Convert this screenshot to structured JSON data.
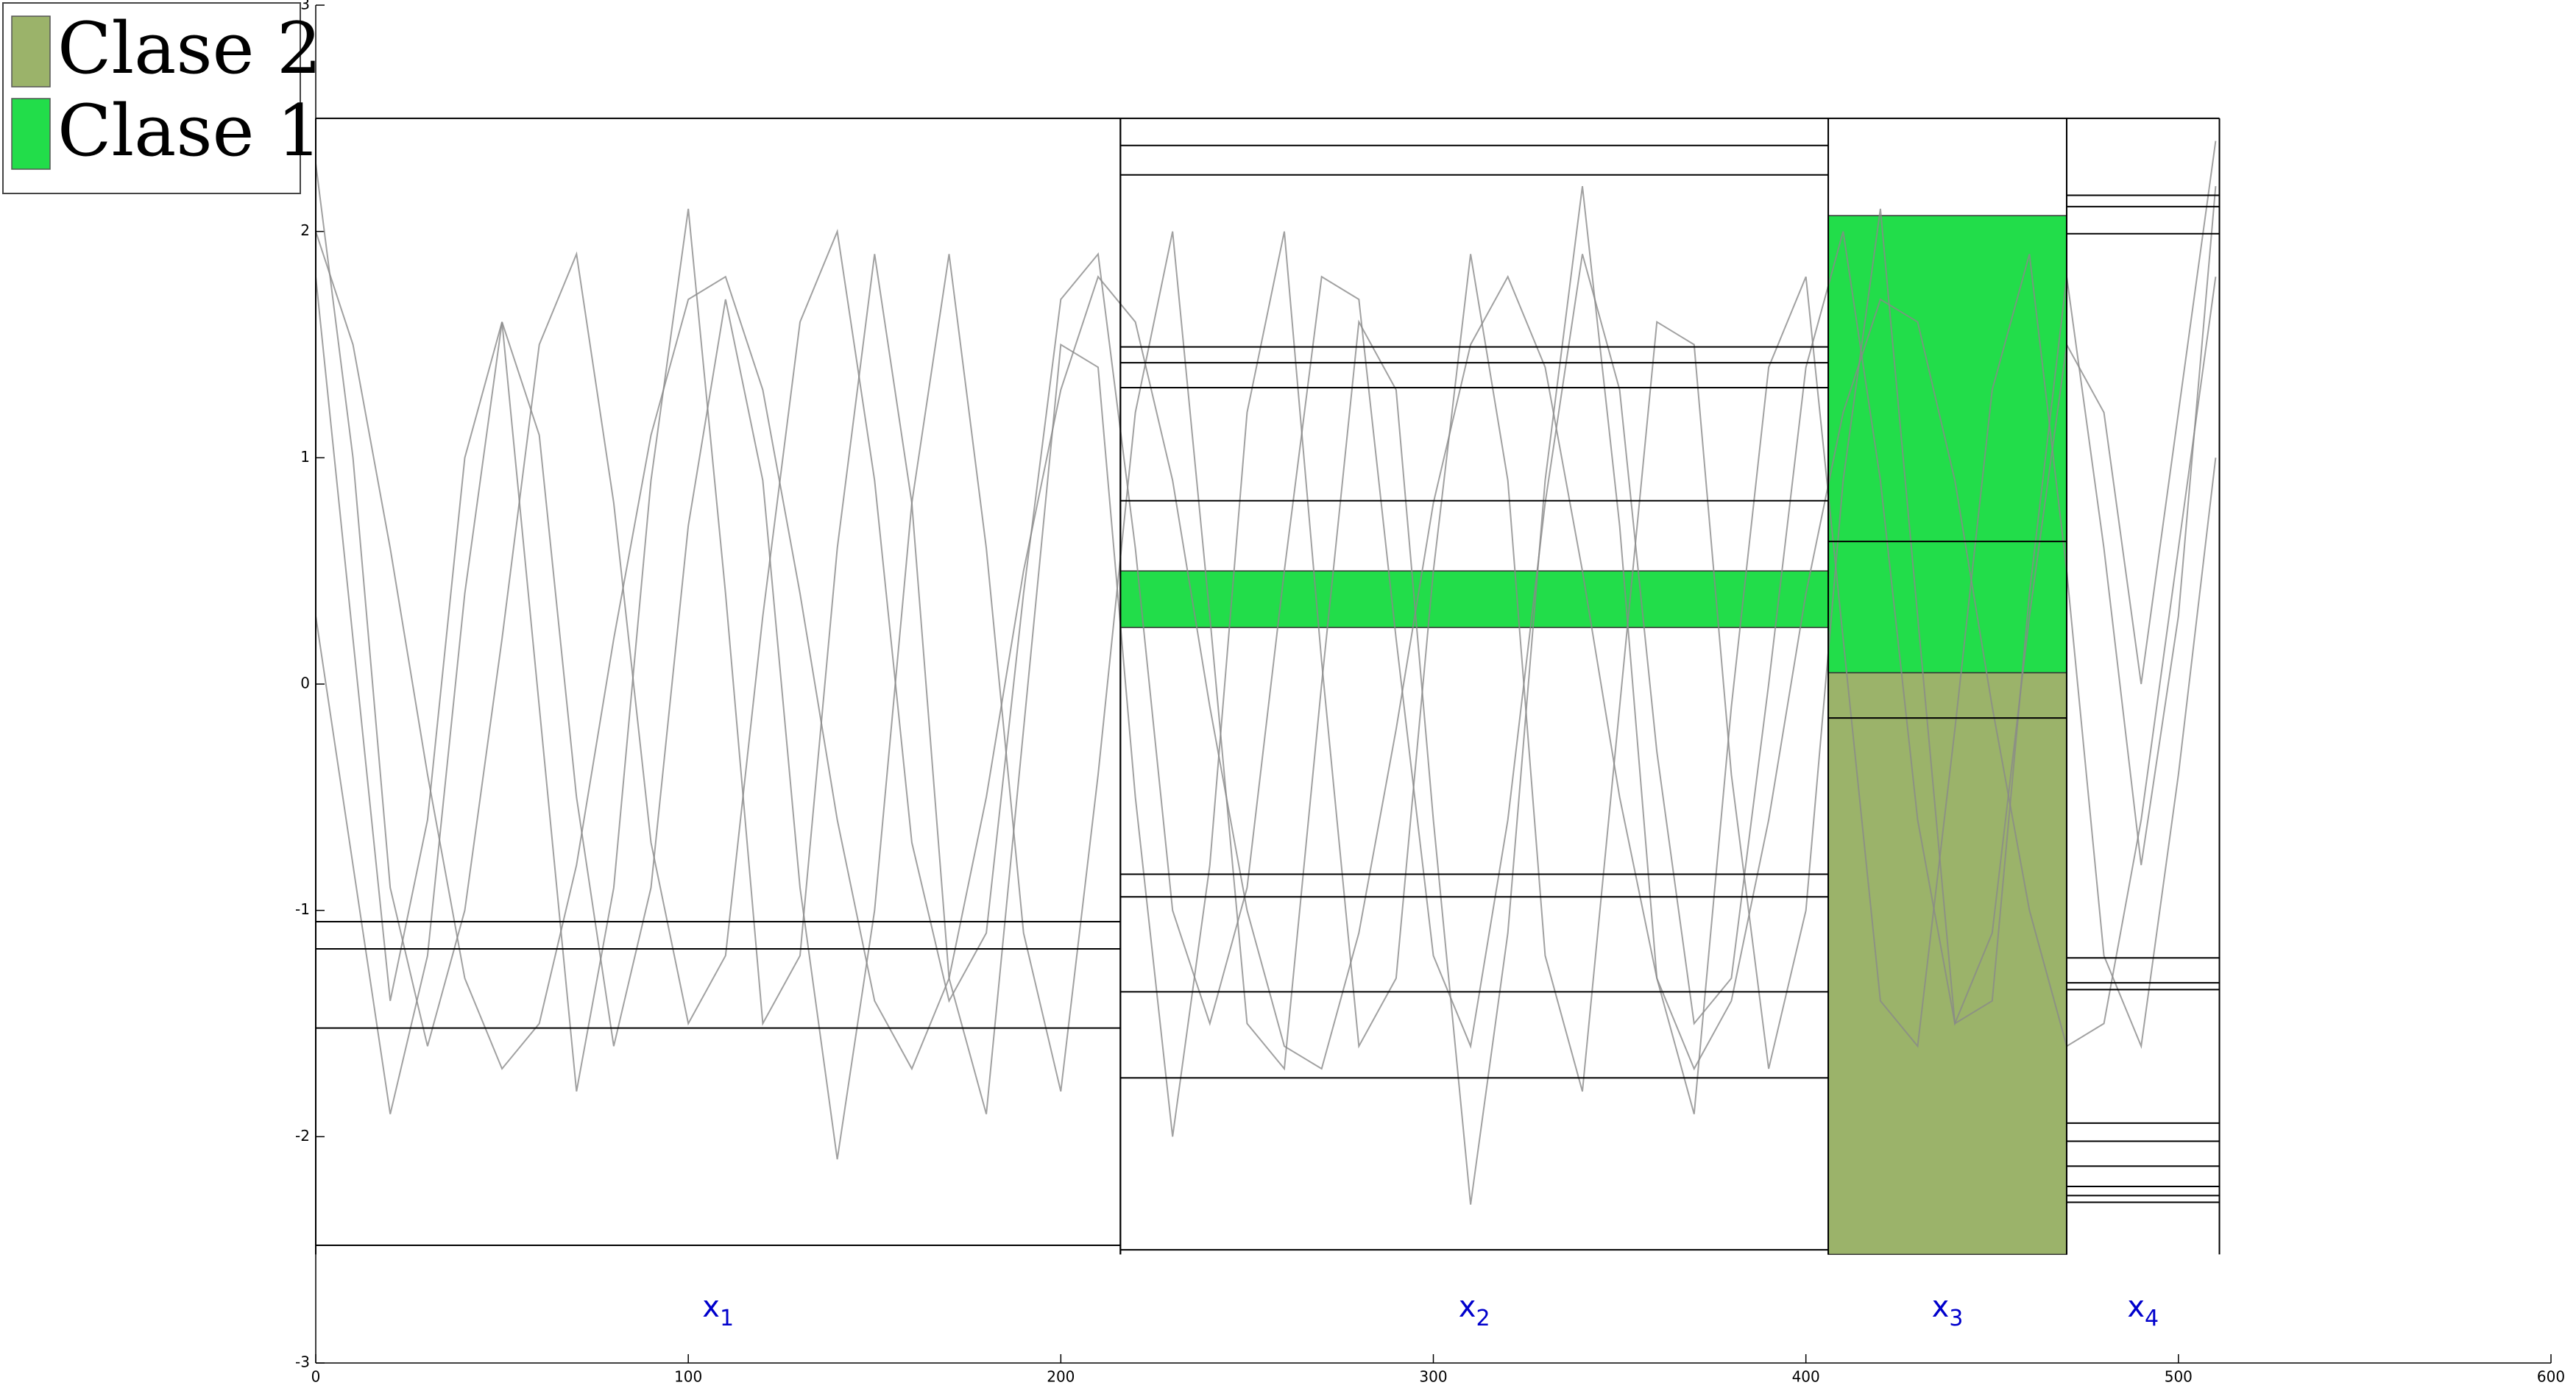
{
  "chart_data": {
    "type": "line",
    "xlim": [
      0,
      600
    ],
    "ylim": [
      -3,
      3
    ],
    "xticks": [
      0,
      100,
      200,
      300,
      400,
      500,
      600
    ],
    "yticks": [
      -3,
      -2,
      -1,
      0,
      1,
      2,
      3
    ],
    "frame": [
      -2.52,
      2.5
    ],
    "x": [
      0,
      10,
      20,
      30,
      40,
      50,
      60,
      70,
      80,
      90,
      100,
      110,
      120,
      130,
      140,
      150,
      160,
      170,
      180,
      190,
      200,
      210,
      220,
      230,
      240,
      250,
      260,
      270,
      280,
      290,
      300,
      310,
      320,
      330,
      340,
      350,
      360,
      370,
      380,
      390,
      400,
      410,
      420,
      430,
      440,
      450,
      460,
      470,
      480,
      490,
      500,
      510
    ],
    "series": [
      {
        "color": "#8a8a8a",
        "values": [
          2.0,
          1.5,
          0.6,
          -0.4,
          -1.3,
          -1.7,
          -1.5,
          -0.8,
          0.2,
          1.1,
          1.7,
          1.8,
          1.3,
          0.4,
          -0.6,
          -1.4,
          -1.7,
          -1.3,
          -0.5,
          0.5,
          1.3,
          1.8,
          1.6,
          0.9,
          -0.1,
          -1.0,
          -1.6,
          -1.7,
          -1.1,
          -0.2,
          0.8,
          1.5,
          1.8,
          1.4,
          0.5,
          -0.5,
          -1.3,
          -1.7,
          -1.4,
          -0.6,
          0.4,
          1.2,
          1.7,
          1.6,
          0.9,
          -0.1,
          -1.0,
          -1.6,
          -1.5,
          -0.6,
          0.6,
          1.8
        ]
      },
      {
        "color": "#8a8a8a",
        "values": [
          1.8,
          0.2,
          -1.4,
          -0.6,
          1.0,
          1.6,
          -0.1,
          -1.8,
          -0.9,
          0.9,
          2.1,
          0.4,
          -1.5,
          -1.2,
          0.6,
          1.9,
          0.8,
          -1.3,
          -1.9,
          -0.2,
          1.5,
          1.4,
          -0.5,
          -2.0,
          -0.8,
          1.2,
          2.0,
          0.1,
          -1.6,
          -1.3,
          0.5,
          1.9,
          0.9,
          -1.2,
          -1.8,
          -0.1,
          1.6,
          1.5,
          -0.4,
          -1.7,
          -1.0,
          0.9,
          2.1,
          0.3,
          -1.5,
          -1.4,
          0.4,
          1.8,
          0.6,
          -0.8,
          0.3,
          2.2
        ]
      },
      {
        "color": "#8a8a8a",
        "values": [
          0.3,
          -0.8,
          -1.9,
          -1.2,
          0.4,
          1.6,
          1.1,
          -0.5,
          -1.6,
          -0.9,
          0.7,
          1.7,
          0.9,
          -0.9,
          -2.1,
          -1.0,
          0.8,
          1.9,
          0.6,
          -1.1,
          -1.8,
          -0.4,
          1.2,
          2.0,
          0.3,
          -1.5,
          -1.7,
          0.0,
          1.6,
          1.3,
          -0.6,
          -2.3,
          -1.1,
          0.9,
          2.2,
          0.7,
          -1.3,
          -1.9,
          -0.1,
          1.4,
          1.8,
          0.2,
          -1.4,
          -1.6,
          -0.2,
          1.3,
          1.9,
          0.5,
          -1.2,
          -1.6,
          -0.4,
          1.0
        ]
      },
      {
        "color": "#8a8a8a",
        "values": [
          2.3,
          1.0,
          -0.9,
          -1.6,
          -1.0,
          0.2,
          1.5,
          1.9,
          0.8,
          -0.7,
          -1.5,
          -1.2,
          0.3,
          1.6,
          2.0,
          0.9,
          -0.7,
          -1.4,
          -1.1,
          0.4,
          1.7,
          1.9,
          0.6,
          -1.0,
          -1.5,
          -0.9,
          0.5,
          1.8,
          1.7,
          0.2,
          -1.2,
          -1.6,
          -0.6,
          0.8,
          1.9,
          1.3,
          -0.3,
          -1.5,
          -1.3,
          0.0,
          1.4,
          2.0,
          0.9,
          -0.6,
          -1.5,
          -1.1,
          0.3,
          1.5,
          1.2,
          0.0,
          1.2,
          2.4
        ]
      }
    ],
    "regions": [
      {
        "x": [
          0,
          216
        ],
        "label": "x",
        "subscript": "1",
        "levels": [
          -1.05,
          -1.17,
          -1.52,
          -2.48
        ]
      },
      {
        "x": [
          216,
          406
        ],
        "label": "x",
        "subscript": "2",
        "levels": [
          2.38,
          2.25,
          1.49,
          1.42,
          1.31,
          0.81,
          -0.84,
          -0.94,
          -1.36,
          -1.74,
          -2.5
        ]
      },
      {
        "x": [
          406,
          470
        ],
        "label": "x",
        "subscript": "3",
        "levels": [
          0.63,
          -0.15
        ]
      },
      {
        "x": [
          470,
          511
        ],
        "label": "x",
        "subscript": "4",
        "levels": [
          2.16,
          2.11,
          1.99,
          -1.21,
          -1.32,
          -1.35,
          -1.94,
          -2.02,
          -2.13,
          -2.22,
          -2.26,
          -2.29
        ]
      }
    ],
    "boxes": [
      {
        "x": [
          216,
          406
        ],
        "y": [
          0.25,
          0.5
        ],
        "color": "#22dd4a"
      },
      {
        "x": [
          406,
          470
        ],
        "y": [
          0.05,
          2.07
        ],
        "color": "#22dd4a"
      },
      {
        "x": [
          406,
          470
        ],
        "y": [
          -2.52,
          0.05
        ],
        "color": "#9bb36a"
      }
    ],
    "legend": [
      {
        "label": "Clase 2",
        "color": "#9bb36a"
      },
      {
        "label": "Clase 1",
        "color": "#22dd4a"
      }
    ]
  }
}
